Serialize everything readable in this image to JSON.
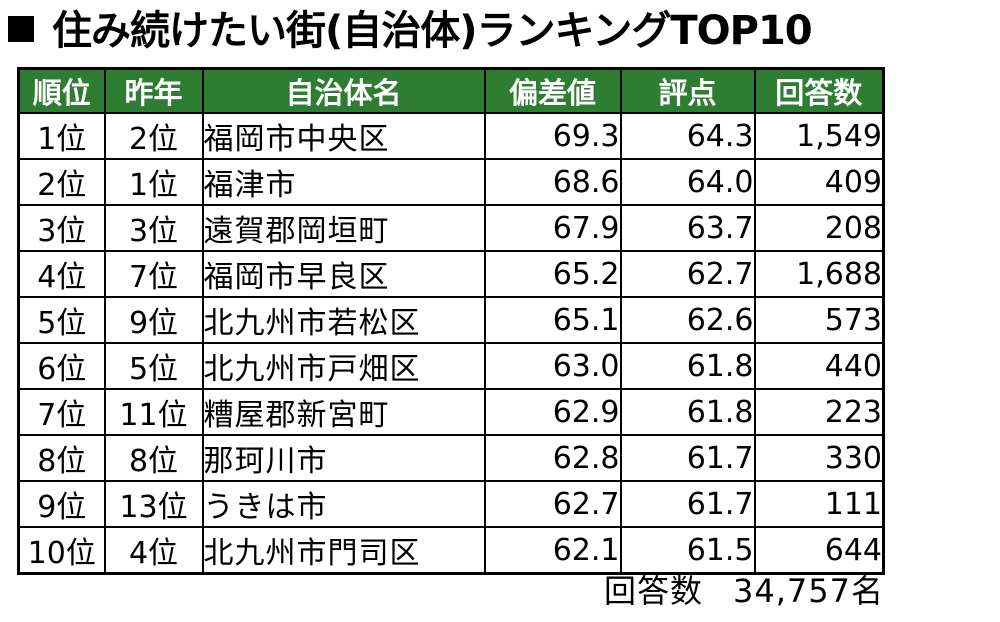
{
  "title": "住み続けたい街(自治体)ランキングTOP10",
  "table": {
    "headers": [
      "順位",
      "昨年",
      "自治体名",
      "偏差値",
      "評点",
      "回答数"
    ],
    "rows": [
      {
        "rank": "1位",
        "prev": "2位",
        "name": "福岡市中央区",
        "deviation": "69.3",
        "score": "64.3",
        "count": "1,549"
      },
      {
        "rank": "2位",
        "prev": "1位",
        "name": "福津市",
        "deviation": "68.6",
        "score": "64.0",
        "count": "409"
      },
      {
        "rank": "3位",
        "prev": "3位",
        "name": "遠賀郡岡垣町",
        "deviation": "67.9",
        "score": "63.7",
        "count": "208"
      },
      {
        "rank": "4位",
        "prev": "7位",
        "name": "福岡市早良区",
        "deviation": "65.2",
        "score": "62.7",
        "count": "1,688"
      },
      {
        "rank": "5位",
        "prev": "9位",
        "name": "北九州市若松区",
        "deviation": "65.1",
        "score": "62.6",
        "count": "573"
      },
      {
        "rank": "6位",
        "prev": "5位",
        "name": "北九州市戸畑区",
        "deviation": "63.0",
        "score": "61.8",
        "count": "440"
      },
      {
        "rank": "7位",
        "prev": "11位",
        "name": "糟屋郡新宮町",
        "deviation": "62.9",
        "score": "61.8",
        "count": "223"
      },
      {
        "rank": "8位",
        "prev": "8位",
        "name": "那珂川市",
        "deviation": "62.8",
        "score": "61.7",
        "count": "330"
      },
      {
        "rank": "9位",
        "prev": "13位",
        "name": "うきは市",
        "deviation": "62.7",
        "score": "61.7",
        "count": "111"
      },
      {
        "rank": "10位",
        "prev": "4位",
        "name": "北九州市門司区",
        "deviation": "62.1",
        "score": "61.5",
        "count": "644"
      }
    ]
  },
  "footer": {
    "label": "回答数",
    "value": "34,757名"
  },
  "colors": {
    "header_bg": "#2e7d32",
    "header_text": "#ffffff"
  }
}
